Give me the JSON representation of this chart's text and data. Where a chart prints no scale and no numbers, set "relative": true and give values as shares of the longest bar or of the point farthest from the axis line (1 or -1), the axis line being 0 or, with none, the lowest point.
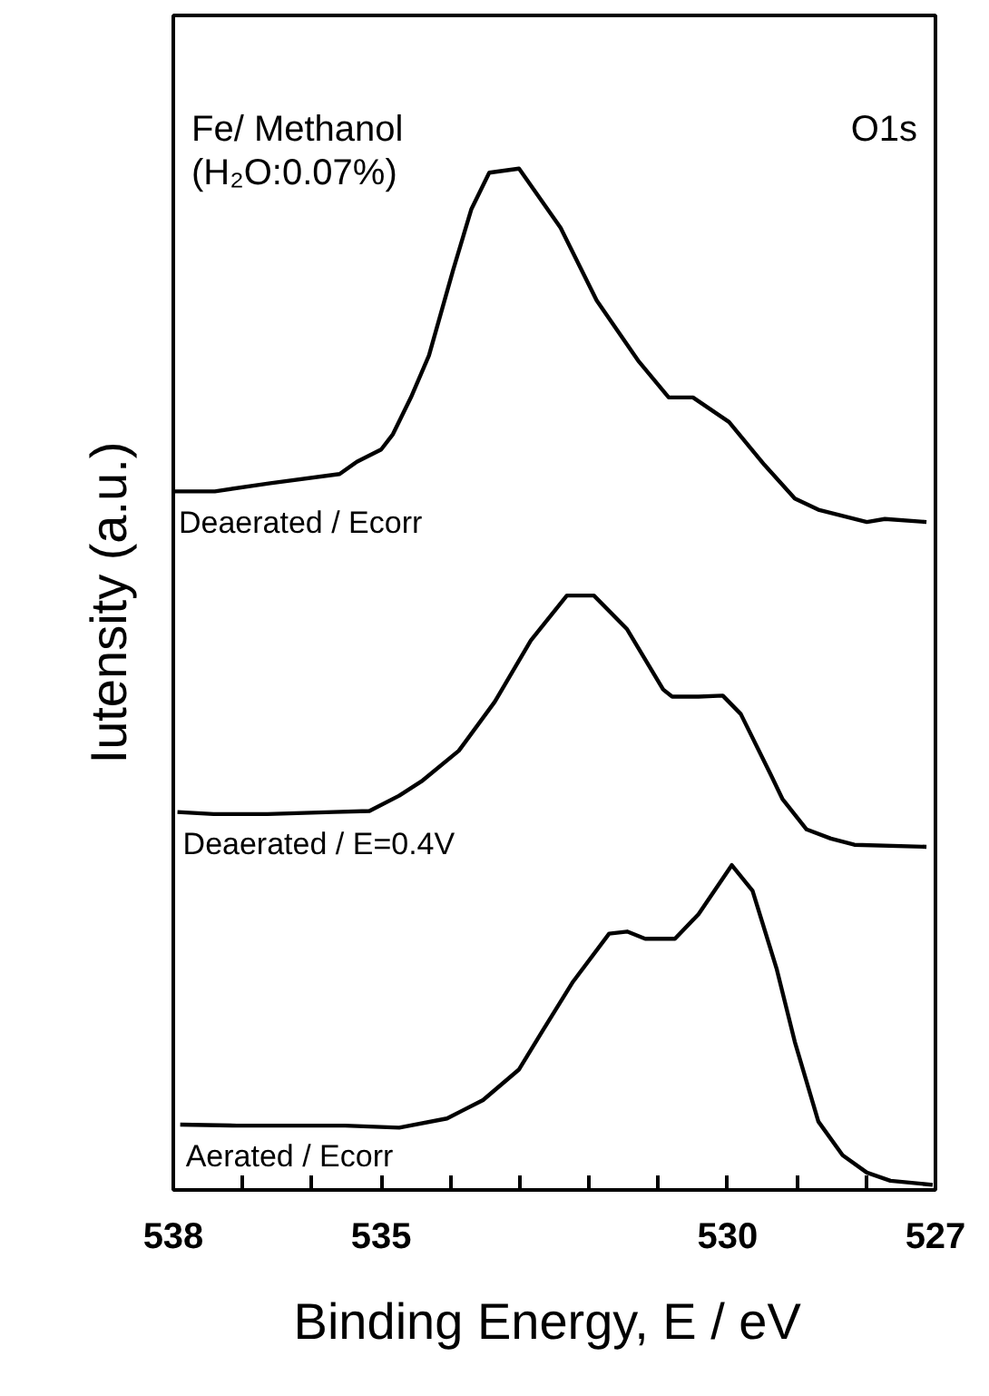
{
  "chart_data": {
    "type": "line",
    "relative": true,
    "xlabel": "Binding  Energy, E / eV",
    "ylabel": "Iutensity (a.u.)",
    "annotations": [
      "Fe/ Methanol",
      "(H₂O:0.07%)",
      "O1s"
    ],
    "xlim": [
      538,
      527
    ],
    "xticks": [
      538,
      {
        "value": 537,
        "label": null
      },
      {
        "value": 536,
        "label": null
      },
      535,
      {
        "value": 534,
        "label": null
      },
      {
        "value": 533,
        "label": null
      },
      {
        "value": 532,
        "label": null
      },
      {
        "value": 531,
        "label": null
      },
      530,
      {
        "value": 529,
        "label": null
      },
      {
        "value": 528,
        "label": null
      },
      527
    ],
    "grid": false,
    "legend": false,
    "line_style": "solid",
    "tick_labels": "x",
    "series": [
      {
        "name": "Deaerated / Ecorr",
        "color": "#000000",
        "x": [
          538.0,
          537.4,
          536.6,
          535.6,
          535.35,
          535.0,
          534.83,
          534.57,
          534.31,
          533.96,
          533.7,
          533.44,
          533.01,
          532.41,
          531.89,
          531.28,
          530.85,
          530.5,
          529.98,
          529.47,
          529.03,
          528.69,
          527.99,
          527.73,
          527.13
        ],
        "values": [
          0.684,
          0.684,
          0.692,
          0.701,
          0.713,
          0.725,
          0.74,
          0.776,
          0.817,
          0.901,
          0.96,
          0.996,
          1.0,
          0.942,
          0.871,
          0.811,
          0.776,
          0.776,
          0.752,
          0.71,
          0.677,
          0.666,
          0.654,
          0.657,
          0.654
        ]
      },
      {
        "name": "Deaerated / E=0.4V",
        "color": "#000000",
        "x": [
          537.94,
          537.42,
          536.64,
          535.69,
          535.17,
          534.74,
          534.4,
          533.88,
          533.36,
          532.84,
          532.32,
          531.93,
          531.45,
          530.93,
          530.8,
          530.42,
          530.07,
          529.81,
          529.38,
          529.21,
          528.86,
          528.51,
          528.17,
          527.13
        ],
        "values": [
          0.37,
          0.368,
          0.368,
          0.37,
          0.371,
          0.386,
          0.401,
          0.43,
          0.478,
          0.538,
          0.582,
          0.582,
          0.549,
          0.49,
          0.483,
          0.483,
          0.484,
          0.466,
          0.407,
          0.383,
          0.353,
          0.344,
          0.338,
          0.336
        ]
      },
      {
        "name": "Aerated / Ecorr",
        "color": "#000000",
        "x": [
          537.9,
          537.08,
          535.52,
          534.74,
          534.05,
          533.53,
          533.01,
          532.66,
          532.23,
          531.71,
          531.45,
          531.19,
          530.76,
          530.42,
          529.94,
          529.64,
          529.29,
          529.03,
          528.69,
          528.34,
          527.99,
          527.65,
          527.04
        ],
        "values": [
          0.064,
          0.063,
          0.063,
          0.061,
          0.07,
          0.088,
          0.118,
          0.157,
          0.204,
          0.251,
          0.253,
          0.246,
          0.246,
          0.27,
          0.318,
          0.293,
          0.216,
          0.145,
          0.067,
          0.034,
          0.017,
          0.009,
          0.005
        ]
      }
    ]
  }
}
